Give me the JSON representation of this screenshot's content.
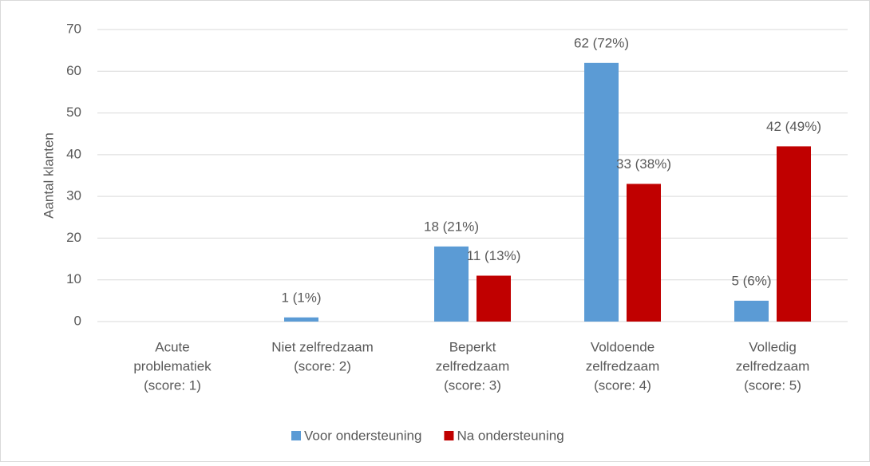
{
  "chart_data": {
    "type": "bar",
    "y_label": "Aantal klanten",
    "categories": [
      [
        "Acute",
        "problematiek",
        "(score: 1)"
      ],
      [
        "Niet zelfredzaam",
        "(score: 2)"
      ],
      [
        "Beperkt",
        "zelfredzaam",
        "(score: 3)"
      ],
      [
        "Voldoende",
        "zelfredzaam",
        "(score: 4)"
      ],
      [
        "Volledig",
        "zelfredzaam",
        "(score: 5)"
      ]
    ],
    "series": [
      {
        "name": "Voor ondersteuning",
        "color": "#5b9bd5",
        "values": [
          0,
          1,
          18,
          62,
          5
        ],
        "value_labels": [
          null,
          "1 (1%)",
          "18 (21%)",
          "62 (72%)",
          "5 (6%)"
        ]
      },
      {
        "name": "Na ondersteuning",
        "color": "#c00000",
        "values": [
          0,
          0,
          11,
          33,
          42
        ],
        "value_labels": [
          null,
          null,
          "11 (13%)",
          "33 (38%)",
          "42 (49%)"
        ]
      }
    ],
    "ylim": [
      0,
      70
    ],
    "yticks": [
      0,
      10,
      20,
      30,
      40,
      50,
      60,
      70
    ],
    "grid": true,
    "legend": "bottom"
  }
}
